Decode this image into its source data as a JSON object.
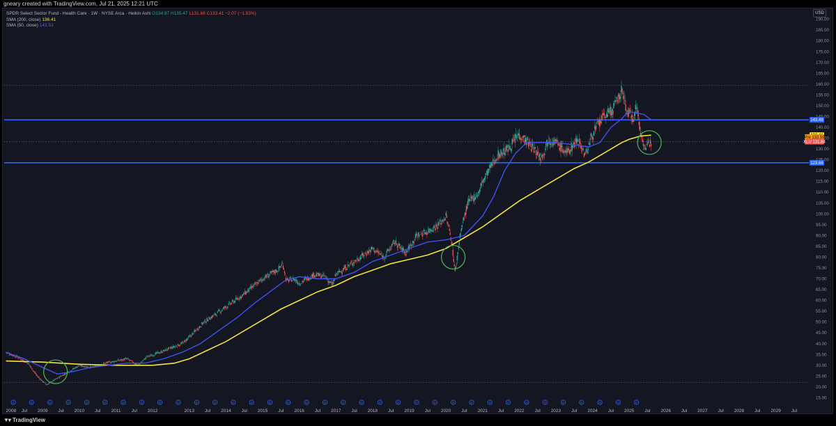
{
  "header": {
    "attribution": "gneary created with TradingView.com, Jul 21, 2025 12:21 UTC"
  },
  "legend": {
    "symbol_line": "SPDR Select Sector Fund - Health Care · 1W · NYSE Arca · Heikin Ashi",
    "ohlc": {
      "o": "O134.97",
      "h": "H135.47",
      "l": "L131.66",
      "c": "C133.41",
      "chg": "−2.07 (−1.53%)"
    },
    "sma200_label": "SMA (200, close)",
    "sma200_value": "136.41",
    "sma50_label": "SMA (50, close)",
    "sma50_value": "143.53"
  },
  "currency": "USD",
  "footer": {
    "brand": "TradingView"
  },
  "chart_data": {
    "type": "line",
    "chart_style": "heikin-ashi candlestick",
    "symbol": "XLU",
    "x_ticks": [
      "2008",
      "Jul",
      "2009",
      "Jul",
      "2010",
      "Jul",
      "2011",
      "Jul",
      "2012",
      "2013",
      "Jul",
      "2014",
      "Jul",
      "2015",
      "Jul",
      "2016",
      "Jul",
      "2017",
      "Jul",
      "2018",
      "Jul",
      "2019",
      "Jul",
      "2020",
      "Jul",
      "2021",
      "Jul",
      "2022",
      "Jul",
      "2023",
      "Jul",
      "2024",
      "Jul",
      "2025",
      "Jul",
      "2026",
      "Jul",
      "2027",
      "Jul",
      "2028",
      "Jul",
      "2029",
      "Jul"
    ],
    "x_tick_years": [
      2008,
      2008.5,
      2009,
      2009.5,
      2010,
      2010.5,
      2011,
      2011.5,
      2012,
      2013,
      2013.5,
      2014,
      2014.5,
      2015,
      2015.5,
      2016,
      2016.5,
      2017,
      2017.5,
      2018,
      2018.5,
      2019,
      2019.5,
      2020,
      2020.5,
      2021,
      2021.5,
      2022,
      2022.5,
      2023,
      2023.5,
      2024,
      2024.5,
      2025,
      2025.5,
      2026,
      2026.5,
      2027,
      2027.5,
      2028,
      2028.5,
      2029,
      2029.5
    ],
    "xlim": [
      2007.95,
      2029.9
    ],
    "ylim": [
      14.5,
      191.5
    ],
    "y_ticks": [
      15,
      20,
      25,
      30,
      35,
      40,
      45,
      50,
      55,
      60,
      65,
      70,
      75,
      80,
      85,
      90,
      95,
      100,
      105,
      110,
      115,
      120,
      125,
      130,
      135,
      140,
      145,
      150,
      155,
      160,
      165,
      170,
      175,
      180,
      185,
      190
    ],
    "y_tick_labels": [
      "15.00",
      "20.00",
      "25.00",
      "30.00",
      "35.00",
      "40.00",
      "45.00",
      "50.00",
      "55.00",
      "60.00",
      "65.00",
      "70.00",
      "75.00",
      "80.00",
      "85.00",
      "90.00",
      "95.00",
      "100.00",
      "105.00",
      "110.00",
      "115.00",
      "120.00",
      "125.00",
      "130.00",
      "135.00",
      "140.00",
      "145.00",
      "150.00",
      "155.00",
      "160.00",
      "165.00",
      "170.00",
      "175.00",
      "180.00",
      "185.00",
      "190.00"
    ],
    "price_path": [
      [
        2008.0,
        36
      ],
      [
        2008.3,
        34
      ],
      [
        2008.6,
        31
      ],
      [
        2008.85,
        25
      ],
      [
        2009.1,
        21
      ],
      [
        2009.4,
        24
      ],
      [
        2009.7,
        27
      ],
      [
        2010.0,
        30
      ],
      [
        2010.35,
        29
      ],
      [
        2010.7,
        31
      ],
      [
        2011.0,
        32
      ],
      [
        2011.3,
        33
      ],
      [
        2011.6,
        30
      ],
      [
        2011.85,
        34
      ],
      [
        2012.2,
        36
      ],
      [
        2012.5,
        38
      ],
      [
        2012.8,
        40
      ],
      [
        2013.0,
        43
      ],
      [
        2013.4,
        50
      ],
      [
        2013.75,
        54
      ],
      [
        2014.0,
        57
      ],
      [
        2014.5,
        63
      ],
      [
        2015.0,
        70
      ],
      [
        2015.4,
        74
      ],
      [
        2015.55,
        77
      ],
      [
        2015.65,
        69
      ],
      [
        2015.85,
        70
      ],
      [
        2016.0,
        68
      ],
      [
        2016.4,
        72
      ],
      [
        2016.7,
        71
      ],
      [
        2016.9,
        67
      ],
      [
        2017.0,
        72
      ],
      [
        2017.5,
        78
      ],
      [
        2018.0,
        84
      ],
      [
        2018.3,
        80
      ],
      [
        2018.6,
        87
      ],
      [
        2018.9,
        82
      ],
      [
        2019.2,
        90
      ],
      [
        2019.5,
        92
      ],
      [
        2019.8,
        95
      ],
      [
        2020.0,
        99
      ],
      [
        2020.15,
        88
      ],
      [
        2020.25,
        73
      ],
      [
        2020.4,
        92
      ],
      [
        2020.6,
        105
      ],
      [
        2020.9,
        110
      ],
      [
        2021.0,
        115
      ],
      [
        2021.4,
        127
      ],
      [
        2021.7,
        130
      ],
      [
        2022.0,
        137
      ],
      [
        2022.4,
        130
      ],
      [
        2022.6,
        126
      ],
      [
        2022.8,
        135
      ],
      [
        2023.0,
        133
      ],
      [
        2023.3,
        128
      ],
      [
        2023.6,
        135
      ],
      [
        2023.8,
        127
      ],
      [
        2024.0,
        137
      ],
      [
        2024.3,
        145
      ],
      [
        2024.55,
        148
      ],
      [
        2024.8,
        157
      ],
      [
        2024.95,
        147
      ],
      [
        2025.1,
        145
      ],
      [
        2025.2,
        150
      ],
      [
        2025.3,
        138
      ],
      [
        2025.45,
        130
      ],
      [
        2025.55,
        132
      ],
      [
        2025.6,
        133.41
      ]
    ],
    "sma50_path": [
      [
        2008.0,
        36
      ],
      [
        2008.5,
        33
      ],
      [
        2009.0,
        29
      ],
      [
        2009.4,
        26
      ],
      [
        2009.8,
        27
      ],
      [
        2010.3,
        29
      ],
      [
        2010.8,
        30
      ],
      [
        2011.3,
        31
      ],
      [
        2011.8,
        31
      ],
      [
        2012.3,
        33
      ],
      [
        2012.8,
        36
      ],
      [
        2013.3,
        40
      ],
      [
        2013.8,
        46
      ],
      [
        2014.3,
        52
      ],
      [
        2014.8,
        59
      ],
      [
        2015.2,
        64
      ],
      [
        2015.6,
        69
      ],
      [
        2016.0,
        71
      ],
      [
        2016.5,
        70
      ],
      [
        2017.0,
        70
      ],
      [
        2017.5,
        73
      ],
      [
        2018.0,
        78
      ],
      [
        2018.5,
        81
      ],
      [
        2019.0,
        84
      ],
      [
        2019.5,
        87
      ],
      [
        2020.0,
        88
      ],
      [
        2020.5,
        90
      ],
      [
        2021.0,
        99
      ],
      [
        2021.3,
        108
      ],
      [
        2021.6,
        120
      ],
      [
        2021.9,
        128
      ],
      [
        2022.2,
        133
      ],
      [
        2022.6,
        133
      ],
      [
        2023.0,
        133
      ],
      [
        2023.5,
        132
      ],
      [
        2023.9,
        131
      ],
      [
        2024.2,
        133
      ],
      [
        2024.5,
        140
      ],
      [
        2024.8,
        144
      ],
      [
        2024.95,
        147
      ],
      [
        2025.1,
        147
      ],
      [
        2025.4,
        146
      ],
      [
        2025.6,
        143.53
      ]
    ],
    "sma200_path": [
      [
        2008.0,
        32
      ],
      [
        2009.0,
        31.5
      ],
      [
        2010.0,
        30.5
      ],
      [
        2011.0,
        30
      ],
      [
        2012.0,
        30
      ],
      [
        2012.6,
        31
      ],
      [
        2013.0,
        33
      ],
      [
        2013.5,
        37
      ],
      [
        2014.0,
        41
      ],
      [
        2014.5,
        46
      ],
      [
        2015.0,
        51
      ],
      [
        2015.5,
        56
      ],
      [
        2016.0,
        60
      ],
      [
        2016.5,
        64
      ],
      [
        2017.0,
        67
      ],
      [
        2017.5,
        71
      ],
      [
        2018.0,
        74
      ],
      [
        2018.5,
        77
      ],
      [
        2019.0,
        79
      ],
      [
        2019.5,
        81
      ],
      [
        2020.0,
        84
      ],
      [
        2020.5,
        89
      ],
      [
        2021.0,
        94
      ],
      [
        2021.5,
        100
      ],
      [
        2022.0,
        106
      ],
      [
        2022.5,
        111
      ],
      [
        2023.0,
        116
      ],
      [
        2023.5,
        121
      ],
      [
        2023.9,
        124
      ],
      [
        2024.2,
        127
      ],
      [
        2024.5,
        130
      ],
      [
        2024.8,
        133
      ],
      [
        2025.0,
        134.5
      ],
      [
        2025.3,
        136
      ],
      [
        2025.6,
        136.41
      ]
    ],
    "horizontal_levels": [
      {
        "value": 143.49,
        "label": "143.49",
        "color": "#2962ff"
      },
      {
        "value": 123.66,
        "label": "123.66",
        "color": "#2962ff"
      }
    ],
    "dotted_levels": [
      159.5,
      22
    ],
    "price_tags": [
      {
        "value": 136.41,
        "label": "136.41",
        "prefix": "",
        "color": "#f5e23c",
        "text_color": "#000000"
      },
      {
        "value": 135.55,
        "label": "133.59",
        "prefix": "Pre",
        "color": "#ff9800",
        "text_color": "#000000"
      },
      {
        "value": 133.41,
        "label": "131.84",
        "prefix": "XLU",
        "color": "#ef5350",
        "text_color": "#ffffff"
      },
      {
        "value": 143.49,
        "label": "143.49",
        "prefix": "",
        "color": "#2962ff",
        "text_color": "#ffffff"
      },
      {
        "value": 123.66,
        "label": "123.66",
        "prefix": "",
        "color": "#2962ff",
        "text_color": "#ffffff"
      }
    ],
    "circles": [
      {
        "x": 2009.35,
        "y": 27
      },
      {
        "x": 2020.2,
        "y": 80
      },
      {
        "x": 2025.55,
        "y": 133
      }
    ],
    "colors": {
      "up": "#26a69a",
      "down": "#ef5350",
      "sma50": "#3f51f5",
      "sma200": "#f5e23c",
      "circle": "#4caf50",
      "level": "#2962ff"
    },
    "grid": false
  }
}
